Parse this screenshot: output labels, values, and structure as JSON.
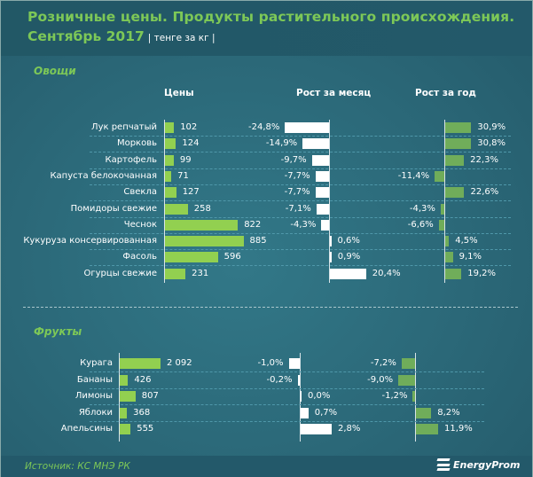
{
  "title_line1": "Розничные  цены. Продукты растительного  происхождения.",
  "title_line2": "Сентябрь 2017",
  "unit": "| тенге за кг |",
  "source": "Источник: КС МНЭ РК",
  "logo": "EnergyProm",
  "colors": {
    "price": "#92d050",
    "month": "#ffffff",
    "year": "#70ad5a",
    "title": "#7dc857"
  },
  "chart_data": [
    {
      "type": "bar",
      "title": "Овощи",
      "columns": [
        "Цены",
        "Рост за месяц",
        "Рост за год"
      ],
      "categories": [
        "Лук репчатый",
        "Морковь",
        "Картофель",
        "Капуста белокочанная",
        "Свекла",
        "Помидоры свежие",
        "Чеснок",
        "Кукуруза консервированная",
        "Фасоль",
        "Огурцы свежие"
      ],
      "series": [
        {
          "name": "Цены",
          "values": [
            102,
            124,
            99,
            71,
            127,
            258,
            822,
            885,
            596,
            231
          ],
          "labels": [
            "102",
            "124",
            "99",
            "71",
            "127",
            "258",
            "822",
            "885",
            "596",
            "231"
          ]
        },
        {
          "name": "Рост за месяц",
          "values": [
            -24.8,
            -14.9,
            -9.7,
            -7.7,
            -7.7,
            -7.1,
            -4.3,
            0.6,
            0.9,
            20.4
          ],
          "labels": [
            "-24,8%",
            "-14,9%",
            "-9,7%",
            "-7,7%",
            "-7,7%",
            "-7,1%",
            "-4,3%",
            "0,6%",
            "0,9%",
            "20,4%"
          ]
        },
        {
          "name": "Рост за год",
          "values": [
            30.9,
            30.8,
            22.3,
            -11.4,
            22.6,
            -4.3,
            -6.6,
            4.5,
            9.1,
            19.2
          ],
          "labels": [
            "30,9%",
            "30,8%",
            "22,3%",
            "-11,4%",
            "22,6%",
            "-4,3%",
            "-6,6%",
            "4,5%",
            "9,1%",
            "19,2%"
          ]
        }
      ]
    },
    {
      "type": "bar",
      "title": "Фрукты",
      "categories": [
        "Курага",
        "Бананы",
        "Лимоны",
        "Яблоки",
        "Апельсины"
      ],
      "series": [
        {
          "name": "Цены",
          "values": [
            2092,
            426,
            807,
            368,
            555
          ],
          "labels": [
            "2 092",
            "426",
            "807",
            "368",
            "555"
          ]
        },
        {
          "name": "Рост за месяц",
          "values": [
            -1.0,
            -0.2,
            0.0,
            0.7,
            2.8
          ],
          "labels": [
            "-1,0%",
            "-0,2%",
            "0,0%",
            "0,7%",
            "2,8%"
          ]
        },
        {
          "name": "Рост за год",
          "values": [
            -7.2,
            -9.0,
            -1.2,
            8.2,
            11.9
          ],
          "labels": [
            "-7,2%",
            "-9,0%",
            "-1,2%",
            "8,2%",
            "11,9%"
          ]
        }
      ]
    }
  ]
}
